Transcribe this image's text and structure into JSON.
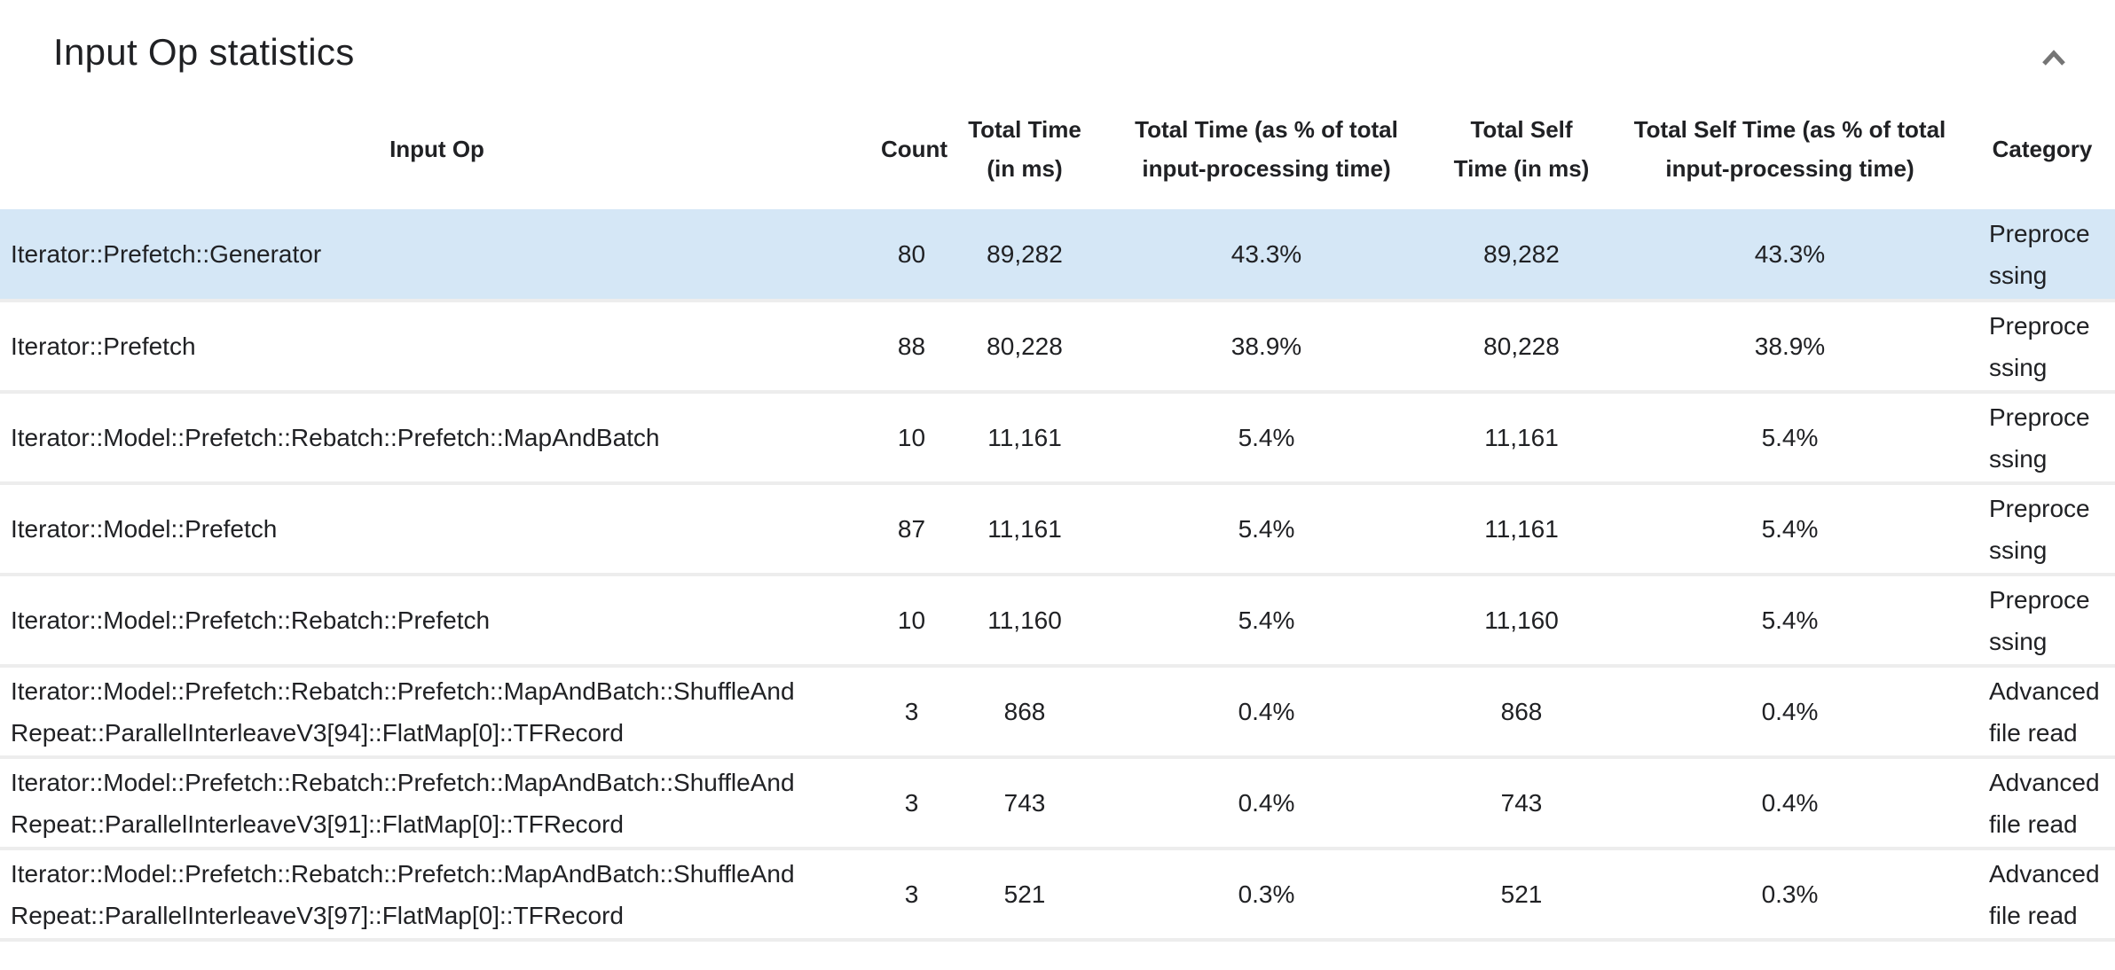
{
  "card": {
    "title": "Input Op statistics",
    "collapse_button": {
      "icon": "chevron-up-icon"
    }
  },
  "table": {
    "columns": [
      {
        "key": "input_op",
        "label": "Input Op",
        "align": "left"
      },
      {
        "key": "count",
        "label": "Count",
        "align": "center"
      },
      {
        "key": "total_time_ms",
        "label": "Total Time\n(in ms)",
        "align": "center"
      },
      {
        "key": "total_time_pct",
        "label": "Total Time (as % of total\ninput-processing time)",
        "align": "center"
      },
      {
        "key": "total_self_time_ms",
        "label": "Total Self\nTime (in ms)",
        "align": "center"
      },
      {
        "key": "total_self_time_pct",
        "label": "Total Self Time (as % of total\ninput-processing time)",
        "align": "center"
      },
      {
        "key": "category",
        "label": "Category",
        "align": "left"
      }
    ],
    "rows": [
      {
        "selected": true,
        "input_op": "Iterator::Prefetch::Generator",
        "count": "80",
        "total_time_ms": "89,282",
        "total_time_pct": "43.3%",
        "total_self_time_ms": "89,282",
        "total_self_time_pct": "43.3%",
        "category": "Preprocessing"
      },
      {
        "selected": false,
        "input_op": "Iterator::Prefetch",
        "count": "88",
        "total_time_ms": "80,228",
        "total_time_pct": "38.9%",
        "total_self_time_ms": "80,228",
        "total_self_time_pct": "38.9%",
        "category": "Preprocessing"
      },
      {
        "selected": false,
        "input_op": "Iterator::Model::Prefetch::Rebatch::Prefetch::MapAndBatch",
        "count": "10",
        "total_time_ms": "11,161",
        "total_time_pct": "5.4%",
        "total_self_time_ms": "11,161",
        "total_self_time_pct": "5.4%",
        "category": "Preprocessing"
      },
      {
        "selected": false,
        "input_op": "Iterator::Model::Prefetch",
        "count": "87",
        "total_time_ms": "11,161",
        "total_time_pct": "5.4%",
        "total_self_time_ms": "11,161",
        "total_self_time_pct": "5.4%",
        "category": "Preprocessing"
      },
      {
        "selected": false,
        "input_op": "Iterator::Model::Prefetch::Rebatch::Prefetch",
        "count": "10",
        "total_time_ms": "11,160",
        "total_time_pct": "5.4%",
        "total_self_time_ms": "11,160",
        "total_self_time_pct": "5.4%",
        "category": "Preprocessing"
      },
      {
        "selected": false,
        "input_op": "Iterator::Model::Prefetch::Rebatch::Prefetch::MapAndBatch::ShuffleAndRepeat::ParallelInterleaveV3[94]::FlatMap[0]::TFRecord",
        "count": "3",
        "total_time_ms": "868",
        "total_time_pct": "0.4%",
        "total_self_time_ms": "868",
        "total_self_time_pct": "0.4%",
        "category": "Advanced file read"
      },
      {
        "selected": false,
        "input_op": "Iterator::Model::Prefetch::Rebatch::Prefetch::MapAndBatch::ShuffleAndRepeat::ParallelInterleaveV3[91]::FlatMap[0]::TFRecord",
        "count": "3",
        "total_time_ms": "743",
        "total_time_pct": "0.4%",
        "total_self_time_ms": "743",
        "total_self_time_pct": "0.4%",
        "category": "Advanced file read"
      },
      {
        "selected": false,
        "input_op": "Iterator::Model::Prefetch::Rebatch::Prefetch::MapAndBatch::ShuffleAndRepeat::ParallelInterleaveV3[97]::FlatMap[0]::TFRecord",
        "count": "3",
        "total_time_ms": "521",
        "total_time_pct": "0.3%",
        "total_self_time_ms": "521",
        "total_self_time_pct": "0.3%",
        "category": "Advanced file read"
      }
    ]
  },
  "colors": {
    "selected_row": "#d5e7f6",
    "row_border": "#ededed",
    "icon": "#757575",
    "text": "#202124"
  }
}
